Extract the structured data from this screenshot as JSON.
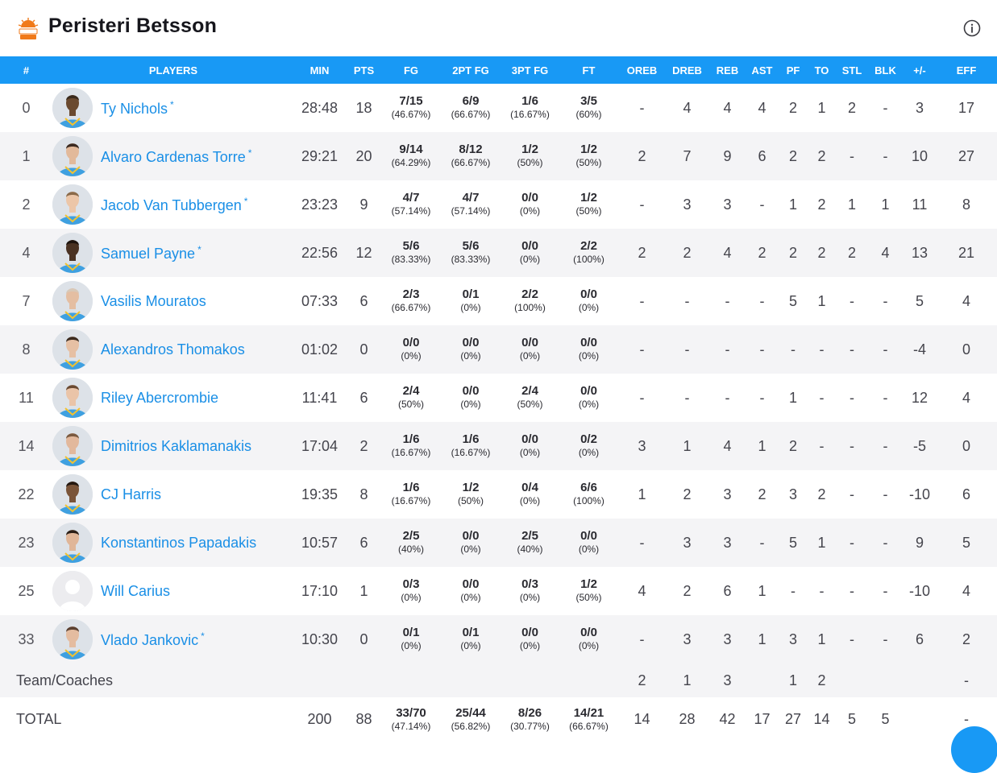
{
  "team": {
    "name": "Peristeri Betsson"
  },
  "icons": {
    "info": "info-icon",
    "logo": "team-logo-icon"
  },
  "colors": {
    "header_bg": "#1899f5",
    "link": "#1a8fe6",
    "on_floor_marker": "#0a2fa8"
  },
  "columns": [
    "#",
    "PLAYERS",
    "MIN",
    "PTS",
    "FG",
    "2PT FG",
    "3PT FG",
    "FT",
    "OREB",
    "DREB",
    "REB",
    "AST",
    "PF",
    "TO",
    "STL",
    "BLK",
    "+/-",
    "EFF"
  ],
  "players": [
    {
      "no": "0",
      "name": "Ty Nichols",
      "star": "*",
      "onfloor": false,
      "min": "28:48",
      "pts": "18",
      "fg": {
        "m": "7/15",
        "p": "(46.67%)"
      },
      "fg2": {
        "m": "6/9",
        "p": "(66.67%)"
      },
      "fg3": {
        "m": "1/6",
        "p": "(16.67%)"
      },
      "ft": {
        "m": "3/5",
        "p": "(60%)"
      },
      "oreb": "-",
      "dreb": "4",
      "reb": "4",
      "ast": "4",
      "pf": "2",
      "to": "1",
      "stl": "2",
      "blk": "-",
      "pm": "3",
      "eff": "17",
      "skin": "#6b4a2f",
      "hair": "#3a2a1c"
    },
    {
      "no": "1",
      "name": "Alvaro Cardenas Torre",
      "star": "*",
      "onfloor": true,
      "min": "29:21",
      "pts": "20",
      "fg": {
        "m": "9/14",
        "p": "(64.29%)"
      },
      "fg2": {
        "m": "8/12",
        "p": "(66.67%)"
      },
      "fg3": {
        "m": "1/2",
        "p": "(50%)"
      },
      "ft": {
        "m": "1/2",
        "p": "(50%)"
      },
      "oreb": "2",
      "dreb": "7",
      "reb": "9",
      "ast": "6",
      "pf": "2",
      "to": "2",
      "stl": "-",
      "blk": "-",
      "pm": "10",
      "eff": "27",
      "skin": "#e2b99a",
      "hair": "#3b2a20"
    },
    {
      "no": "2",
      "name": "Jacob Van Tubbergen",
      "star": "*",
      "onfloor": true,
      "min": "23:23",
      "pts": "9",
      "fg": {
        "m": "4/7",
        "p": "(57.14%)"
      },
      "fg2": {
        "m": "4/7",
        "p": "(57.14%)"
      },
      "fg3": {
        "m": "0/0",
        "p": "(0%)"
      },
      "ft": {
        "m": "1/2",
        "p": "(50%)"
      },
      "oreb": "-",
      "dreb": "3",
      "reb": "3",
      "ast": "-",
      "pf": "1",
      "to": "2",
      "stl": "1",
      "blk": "1",
      "pm": "11",
      "eff": "8",
      "skin": "#ecc6a8",
      "hair": "#8a6a4a"
    },
    {
      "no": "4",
      "name": "Samuel Payne",
      "star": "*",
      "onfloor": true,
      "min": "22:56",
      "pts": "12",
      "fg": {
        "m": "5/6",
        "p": "(83.33%)"
      },
      "fg2": {
        "m": "5/6",
        "p": "(83.33%)"
      },
      "fg3": {
        "m": "0/0",
        "p": "(0%)"
      },
      "ft": {
        "m": "2/2",
        "p": "(100%)"
      },
      "oreb": "2",
      "dreb": "2",
      "reb": "4",
      "ast": "2",
      "pf": "2",
      "to": "2",
      "stl": "2",
      "blk": "4",
      "pm": "13",
      "eff": "21",
      "skin": "#4a3222",
      "hair": "#1e140e"
    },
    {
      "no": "7",
      "name": "Vasilis Mouratos",
      "star": "",
      "onfloor": false,
      "min": "07:33",
      "pts": "6",
      "fg": {
        "m": "2/3",
        "p": "(66.67%)"
      },
      "fg2": {
        "m": "0/1",
        "p": "(0%)"
      },
      "fg3": {
        "m": "2/2",
        "p": "(100%)"
      },
      "ft": {
        "m": "0/0",
        "p": "(0%)"
      },
      "oreb": "-",
      "dreb": "-",
      "reb": "-",
      "ast": "-",
      "pf": "5",
      "to": "1",
      "stl": "-",
      "blk": "-",
      "pm": "5",
      "eff": "4",
      "skin": "#e4bea2",
      "hair": "#d8c8b8"
    },
    {
      "no": "8",
      "name": "Alexandros Thomakos",
      "star": "",
      "onfloor": true,
      "min": "01:02",
      "pts": "0",
      "fg": {
        "m": "0/0",
        "p": "(0%)"
      },
      "fg2": {
        "m": "0/0",
        "p": "(0%)"
      },
      "fg3": {
        "m": "0/0",
        "p": "(0%)"
      },
      "ft": {
        "m": "0/0",
        "p": "(0%)"
      },
      "oreb": "-",
      "dreb": "-",
      "reb": "-",
      "ast": "-",
      "pf": "-",
      "to": "-",
      "stl": "-",
      "blk": "-",
      "pm": "-4",
      "eff": "0",
      "skin": "#e6c0a4",
      "hair": "#3a2a1e"
    },
    {
      "no": "11",
      "name": "Riley Abercrombie",
      "star": "",
      "onfloor": true,
      "min": "11:41",
      "pts": "6",
      "fg": {
        "m": "2/4",
        "p": "(50%)"
      },
      "fg2": {
        "m": "0/0",
        "p": "(0%)"
      },
      "fg3": {
        "m": "2/4",
        "p": "(50%)"
      },
      "ft": {
        "m": "0/0",
        "p": "(0%)"
      },
      "oreb": "-",
      "dreb": "-",
      "reb": "-",
      "ast": "-",
      "pf": "1",
      "to": "-",
      "stl": "-",
      "blk": "-",
      "pm": "12",
      "eff": "4",
      "skin": "#eac4a8",
      "hair": "#6a4a32"
    },
    {
      "no": "14",
      "name": "Dimitrios Kaklamanakis",
      "star": "",
      "onfloor": false,
      "min": "17:04",
      "pts": "2",
      "fg": {
        "m": "1/6",
        "p": "(16.67%)"
      },
      "fg2": {
        "m": "1/6",
        "p": "(16.67%)"
      },
      "fg3": {
        "m": "0/0",
        "p": "(0%)"
      },
      "ft": {
        "m": "0/2",
        "p": "(0%)"
      },
      "oreb": "3",
      "dreb": "1",
      "reb": "4",
      "ast": "1",
      "pf": "2",
      "to": "-",
      "stl": "-",
      "blk": "-",
      "pm": "-5",
      "eff": "0",
      "skin": "#e2b89c",
      "hair": "#7a5a40"
    },
    {
      "no": "22",
      "name": "CJ Harris",
      "star": "",
      "onfloor": false,
      "min": "19:35",
      "pts": "8",
      "fg": {
        "m": "1/6",
        "p": "(16.67%)"
      },
      "fg2": {
        "m": "1/2",
        "p": "(50%)"
      },
      "fg3": {
        "m": "0/4",
        "p": "(0%)"
      },
      "ft": {
        "m": "6/6",
        "p": "(100%)"
      },
      "oreb": "1",
      "dreb": "2",
      "reb": "3",
      "ast": "2",
      "pf": "3",
      "to": "2",
      "stl": "-",
      "blk": "-",
      "pm": "-10",
      "eff": "6",
      "skin": "#7a5438",
      "hair": "#241810"
    },
    {
      "no": "23",
      "name": "Konstantinos Papadakis",
      "star": "",
      "onfloor": false,
      "min": "10:57",
      "pts": "6",
      "fg": {
        "m": "2/5",
        "p": "(40%)"
      },
      "fg2": {
        "m": "0/0",
        "p": "(0%)"
      },
      "fg3": {
        "m": "2/5",
        "p": "(40%)"
      },
      "ft": {
        "m": "0/0",
        "p": "(0%)"
      },
      "oreb": "-",
      "dreb": "3",
      "reb": "3",
      "ast": "-",
      "pf": "5",
      "to": "1",
      "stl": "-",
      "blk": "-",
      "pm": "9",
      "eff": "5",
      "skin": "#e0b698",
      "hair": "#2a1e16"
    },
    {
      "no": "25",
      "name": "Will Carius",
      "star": "",
      "onfloor": false,
      "placeholder": true,
      "min": "17:10",
      "pts": "1",
      "fg": {
        "m": "0/3",
        "p": "(0%)"
      },
      "fg2": {
        "m": "0/0",
        "p": "(0%)"
      },
      "fg3": {
        "m": "0/3",
        "p": "(0%)"
      },
      "ft": {
        "m": "1/2",
        "p": "(50%)"
      },
      "oreb": "4",
      "dreb": "2",
      "reb": "6",
      "ast": "1",
      "pf": "-",
      "to": "-",
      "stl": "-",
      "blk": "-",
      "pm": "-10",
      "eff": "4",
      "skin": "#e9e9ec",
      "hair": "#e9e9ec"
    },
    {
      "no": "33",
      "name": "Vlado Jankovic",
      "star": "*",
      "onfloor": false,
      "min": "10:30",
      "pts": "0",
      "fg": {
        "m": "0/1",
        "p": "(0%)"
      },
      "fg2": {
        "m": "0/1",
        "p": "(0%)"
      },
      "fg3": {
        "m": "0/0",
        "p": "(0%)"
      },
      "ft": {
        "m": "0/0",
        "p": "(0%)"
      },
      "oreb": "-",
      "dreb": "3",
      "reb": "3",
      "ast": "1",
      "pf": "3",
      "to": "1",
      "stl": "-",
      "blk": "-",
      "pm": "6",
      "eff": "2",
      "skin": "#e4bca0",
      "hair": "#5a4030"
    }
  ],
  "team_coaches": {
    "label": "Team/Coaches",
    "oreb": "2",
    "dreb": "1",
    "reb": "3",
    "ast": "",
    "pf": "1",
    "to": "2",
    "stl": "",
    "blk": "",
    "pm": "",
    "eff": "-"
  },
  "totals": {
    "label": "TOTAL",
    "min": "200",
    "pts": "88",
    "fg": {
      "m": "33/70",
      "p": "(47.14%)"
    },
    "fg2": {
      "m": "25/44",
      "p": "(56.82%)"
    },
    "fg3": {
      "m": "8/26",
      "p": "(30.77%)"
    },
    "ft": {
      "m": "14/21",
      "p": "(66.67%)"
    },
    "oreb": "14",
    "dreb": "28",
    "reb": "42",
    "ast": "17",
    "pf": "27",
    "to": "14",
    "stl": "5",
    "blk": "5",
    "pm": "",
    "eff": "-"
  }
}
